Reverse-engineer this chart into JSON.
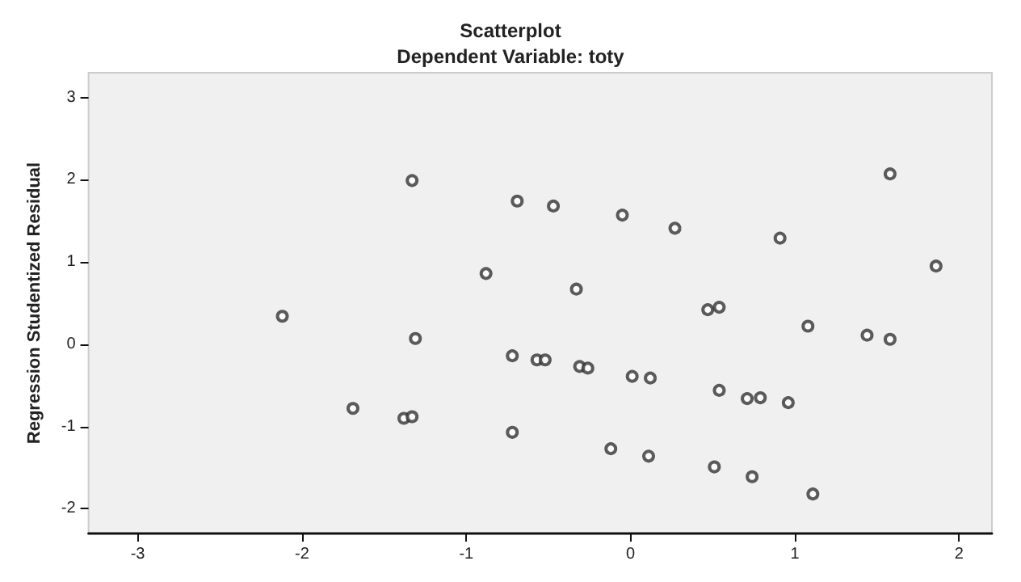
{
  "chart_data": {
    "type": "scatter",
    "title": "Scatterplot",
    "subtitle": "Dependent Variable: toty",
    "ylabel": "Regression Studentized Residual",
    "x": [
      -1.33,
      -0.69,
      -0.47,
      -0.05,
      0.27,
      0.91,
      1.58,
      1.86,
      -0.88,
      -0.33,
      -2.12,
      0.47,
      0.54,
      1.08,
      1.44,
      1.58,
      -1.31,
      -0.72,
      -0.57,
      -0.52,
      -0.31,
      -0.26,
      0.01,
      0.12,
      0.54,
      0.71,
      0.79,
      0.96,
      -1.69,
      -1.38,
      -1.33,
      -0.72,
      -0.12,
      0.11,
      0.51,
      0.74,
      1.11
    ],
    "values": [
      1.99,
      1.74,
      1.68,
      1.57,
      1.41,
      1.29,
      2.07,
      0.95,
      0.86,
      0.67,
      0.34,
      0.42,
      0.45,
      0.22,
      0.11,
      0.06,
      0.07,
      -0.14,
      -0.19,
      -0.19,
      -0.27,
      -0.29,
      -0.39,
      -0.41,
      -0.56,
      -0.66,
      -0.65,
      -0.71,
      -0.78,
      -0.9,
      -0.88,
      -1.07,
      -1.27,
      -1.36,
      -1.49,
      -1.61,
      -1.82
    ],
    "color": "#333333",
    "marker": "circle",
    "xlim": [
      -3.3,
      2.2
    ],
    "xticks": [
      -3,
      -2,
      -1,
      0,
      1,
      2
    ],
    "ylim": [
      -2.3,
      3.3
    ],
    "yticks": [
      -2,
      -1,
      0,
      1,
      2,
      3
    ]
  }
}
